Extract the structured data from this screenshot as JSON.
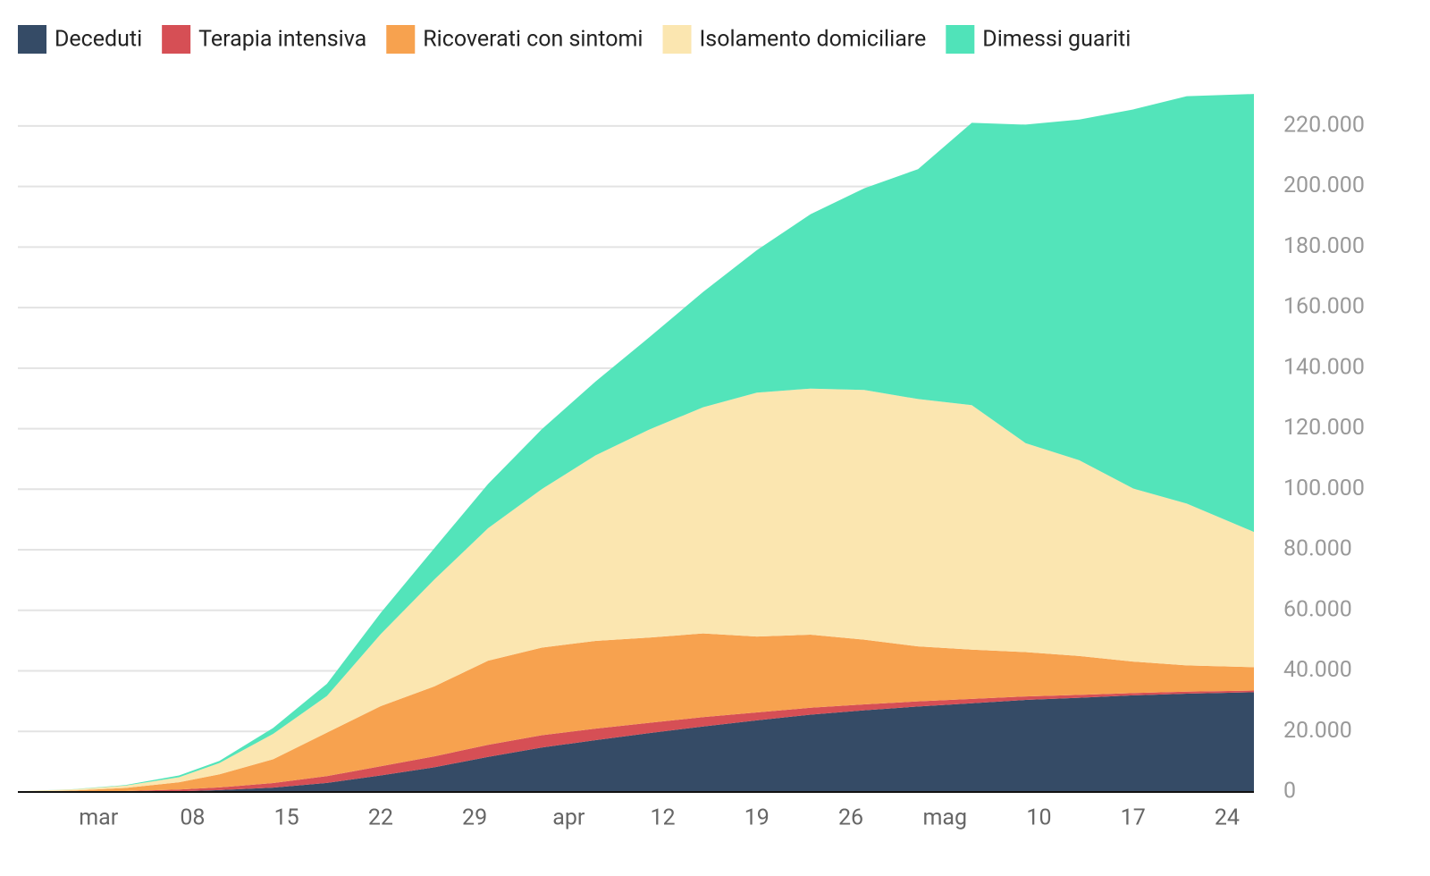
{
  "chart_data": {
    "type": "stacked-area",
    "x": [
      "02-24",
      "02-28",
      "03-03",
      "03-07",
      "03-10",
      "03-14",
      "03-18",
      "03-22",
      "03-26",
      "03-30",
      "04-03",
      "04-07",
      "04-11",
      "04-15",
      "04-19",
      "04-23",
      "04-27",
      "05-01",
      "05-05",
      "05-09",
      "05-13",
      "05-17",
      "05-21",
      "05-26"
    ],
    "series": [
      {
        "name": "Deceduti",
        "color": "#354b66",
        "values": [
          7,
          17,
          79,
          233,
          631,
          1441,
          2978,
          5476,
          8165,
          11591,
          14681,
          17127,
          19468,
          21645,
          23660,
          25549,
          26977,
          28236,
          29315,
          30395,
          31106,
          31908,
          32486,
          32955
        ]
      },
      {
        "name": "Terapia intensiva",
        "color": "#d64f55",
        "values": [
          27,
          64,
          229,
          567,
          877,
          1518,
          2257,
          3009,
          3612,
          3981,
          4068,
          3792,
          3381,
          3079,
          2635,
          2267,
          1956,
          1694,
          1427,
          1168,
          952,
          762,
          640,
          541
        ]
      },
      {
        "name": "Ricoverati con sintomi",
        "color": "#f7a24f",
        "values": [
          101,
          345,
          1034,
          2394,
          4316,
          7860,
          14363,
          19846,
          23112,
          27795,
          28949,
          28976,
          28144,
          27643,
          25033,
          24134,
          21372,
          18149,
          16270,
          14636,
          12865,
          10400,
          8695,
          7729
        ]
      },
      {
        "name": "Isolamento domiciliare",
        "color": "#fbe6b0",
        "values": [
          94,
          412,
          773,
          1675,
          3724,
          8372,
          12090,
          23783,
          35290,
          43752,
          52371,
          61299,
          68744,
          74696,
          80589,
          81298,
          82485,
          81708,
          80770,
          69038,
          64640,
          57189,
          53417,
          44672
        ]
      },
      {
        "name": "Dimessi guariti",
        "color": "#50e3b9",
        "values": [
          1,
          46,
          160,
          589,
          724,
          1966,
          4025,
          7024,
          10361,
          14620,
          19758,
          24392,
          30455,
          38092,
          47055,
          57576,
          66624,
          75945,
          93245,
          105186,
          112541,
          125176,
          134560,
          144658
        ]
      }
    ],
    "xlim": [
      "02-24",
      "05-26"
    ],
    "xticks": [
      {
        "value": "03-01",
        "label": "mar"
      },
      {
        "value": "03-08",
        "label": "08"
      },
      {
        "value": "03-15",
        "label": "15"
      },
      {
        "value": "03-22",
        "label": "22"
      },
      {
        "value": "03-29",
        "label": "29"
      },
      {
        "value": "04-05",
        "label": "apr"
      },
      {
        "value": "04-12",
        "label": "12"
      },
      {
        "value": "04-19",
        "label": "19"
      },
      {
        "value": "04-26",
        "label": "26"
      },
      {
        "value": "05-03",
        "label": "mag"
      },
      {
        "value": "05-10",
        "label": "10"
      },
      {
        "value": "05-17",
        "label": "17"
      },
      {
        "value": "05-24",
        "label": "24"
      }
    ],
    "ylim": [
      0,
      230000
    ],
    "yticks": [
      0,
      {
        "value": 20000,
        "label": "20.000"
      },
      {
        "value": 40000,
        "label": "40.000"
      },
      {
        "value": 60000,
        "label": "60.000"
      },
      {
        "value": 80000,
        "label": "80.000"
      },
      {
        "value": 100000,
        "label": "100.000"
      },
      {
        "value": 120000,
        "label": "120.000"
      },
      {
        "value": 140000,
        "label": "140.000"
      },
      {
        "value": 160000,
        "label": "160.000"
      },
      {
        "value": 180000,
        "label": "180.000"
      },
      {
        "value": 200000,
        "label": "200.000"
      },
      {
        "value": 220000,
        "label": "220.000"
      }
    ],
    "grid": true
  }
}
